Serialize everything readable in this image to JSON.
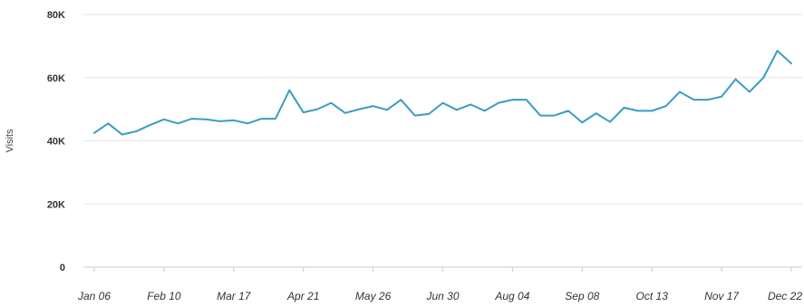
{
  "chart_data": {
    "type": "line",
    "title": "",
    "xlabel": "",
    "ylabel": "Visits",
    "ylim": [
      0,
      80000
    ],
    "y_ticks": [
      {
        "value": 0,
        "label": "0"
      },
      {
        "value": 20000,
        "label": "20K"
      },
      {
        "value": 40000,
        "label": "40K"
      },
      {
        "value": 60000,
        "label": "60K"
      },
      {
        "value": 80000,
        "label": "80K"
      }
    ],
    "x_tick_labels": [
      "Jan 06",
      "Feb 10",
      "Mar 17",
      "Apr 21",
      "May 26",
      "Jun 30",
      "Aug 04",
      "Sep 08",
      "Oct 13",
      "Nov 17",
      "Dec 22"
    ],
    "x_tick_every": 5,
    "grid": "horizontal",
    "legend": "none",
    "colors": {
      "line": "#3a9cc4",
      "grid": "#e6e6e6",
      "axis": "#cccccc"
    },
    "series": [
      {
        "values": [
          42500,
          45500,
          42000,
          43000,
          45000,
          46800,
          45500,
          47000,
          46800,
          46200,
          46500,
          45500,
          47000,
          47000,
          56000,
          49000,
          50000,
          52000,
          48800,
          50000,
          51000,
          49800,
          53000,
          48000,
          48500,
          52000,
          49800,
          51500,
          49500,
          52000,
          53000,
          53000,
          48000,
          48000,
          49500,
          45800,
          48700,
          46000,
          50500,
          49500,
          49500,
          51000,
          55500,
          53000,
          53000,
          54000,
          59500,
          55500,
          60000,
          68500,
          64500
        ]
      }
    ]
  }
}
